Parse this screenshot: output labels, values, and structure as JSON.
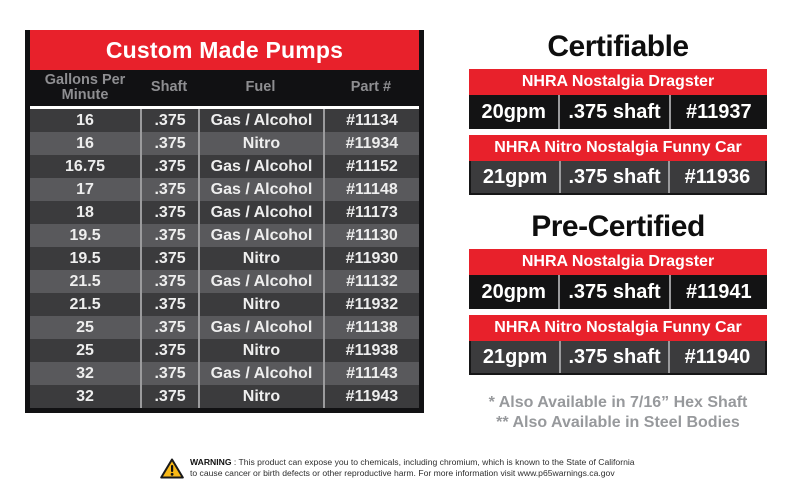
{
  "colors": {
    "red": "#e8212b",
    "table_black": "#111113",
    "row_dark": "#3b3b3d",
    "row_light": "#59595c",
    "header_text_gray": "#8e8e91",
    "footnote_gray": "#97999c",
    "warning_yellow": "#f9b916"
  },
  "pumps_table": {
    "title": "Custom Made Pumps",
    "columns": [
      "Gallons Per Minute",
      "Shaft",
      "Fuel",
      "Part #"
    ],
    "rows": [
      [
        "16",
        ".375",
        "Gas / Alcohol",
        "#11134"
      ],
      [
        "16",
        ".375",
        "Nitro",
        "#11934"
      ],
      [
        "16.75",
        ".375",
        "Gas / Alcohol",
        "#11152"
      ],
      [
        "17",
        ".375",
        "Gas / Alcohol",
        "#11148"
      ],
      [
        "18",
        ".375",
        "Gas / Alcohol",
        "#11173"
      ],
      [
        "19.5",
        ".375",
        "Gas / Alcohol",
        "#11130"
      ],
      [
        "19.5",
        ".375",
        "Nitro",
        "#11930"
      ],
      [
        "21.5",
        ".375",
        "Gas / Alcohol",
        "#11132"
      ],
      [
        "21.5",
        ".375",
        "Nitro",
        "#11932"
      ],
      [
        "25",
        ".375",
        "Gas / Alcohol",
        "#11138"
      ],
      [
        "25",
        ".375",
        "Nitro",
        "#11938"
      ],
      [
        "32",
        ".375",
        "Gas / Alcohol",
        "#11143"
      ],
      [
        "32",
        ".375",
        "Nitro",
        "#11943"
      ]
    ]
  },
  "certifiable": {
    "title": "Certifiable",
    "groups": [
      {
        "label": "NHRA Nostalgia Dragster",
        "gpm": "20gpm",
        "shaft": ".375 shaft",
        "part": "#11937",
        "row_style": "black"
      },
      {
        "label": "NHRA Nitro Nostalgia Funny Car",
        "gpm": "21gpm",
        "shaft": ".375 shaft",
        "part": "#11936",
        "row_style": "gray"
      }
    ]
  },
  "pre_certified": {
    "title": "Pre-Certified",
    "groups": [
      {
        "label": "NHRA Nostalgia Dragster",
        "gpm": "20gpm",
        "shaft": ".375 shaft",
        "part": "#11941",
        "row_style": "black"
      },
      {
        "label": "NHRA Nitro Nostalgia Funny Car",
        "gpm": "21gpm",
        "shaft": ".375 shaft",
        "part": "#11940",
        "row_style": "gray"
      }
    ]
  },
  "footnotes": [
    "* Also Available in 7/16” Hex Shaft",
    "** Also Available in Steel Bodies"
  ],
  "warning": {
    "label": "WARNING",
    "text": " : This product can expose you to chemicals, including chromium, which is known to the State of California to cause cancer or birth defects or other reproductive harm. For more information visit www.p65warnings.ca.gov",
    "icon": "warning-triangle-icon"
  }
}
